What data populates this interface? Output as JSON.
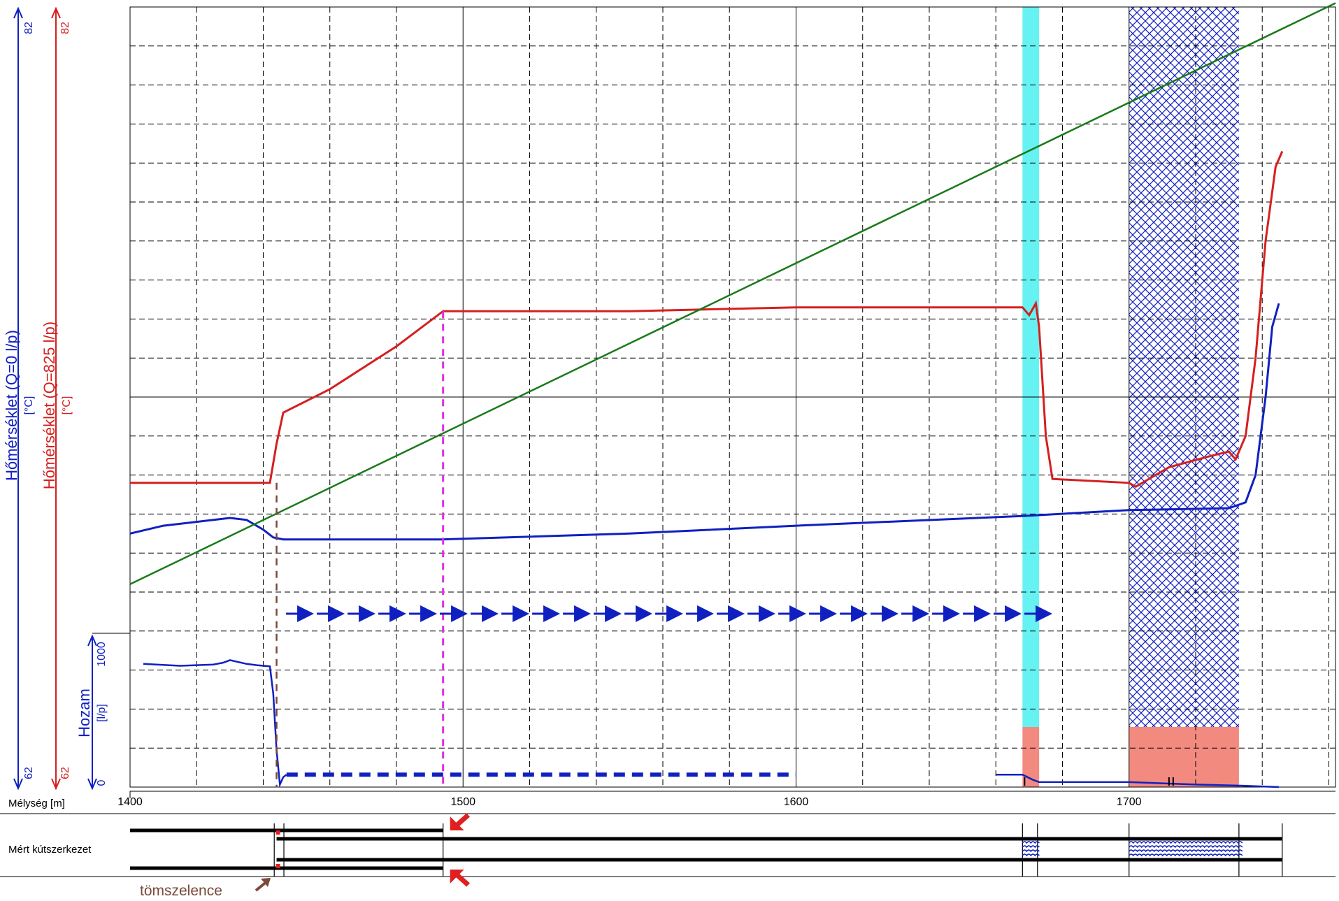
{
  "colors": {
    "blue": "#1020c0",
    "red": "#d42020",
    "green": "#1a7a1a",
    "cyan": "#66f2f2",
    "salmon": "#f28a80",
    "brown": "#7a4a3a",
    "magenta": "#e030e0",
    "grid": "#000000"
  },
  "labels": {
    "axis_temp0": "Hőmérséklet (Q=0 l/p)",
    "axis_temp0_unit": "[°C]",
    "axis_temp825": "Hőmérséklet (Q=825 l/p)",
    "axis_temp825_unit": "[°C]",
    "axis_flow": "Hozam",
    "axis_flow_unit": "[l/p]",
    "depth_label": "Mélység [m]",
    "structure_label": "Mért kútszerkezet",
    "packer_label": "tömszelence"
  },
  "chart_data": {
    "type": "line",
    "x_axis": {
      "label": "Mélység [m]",
      "range": [
        1400,
        1762
      ],
      "ticks": [
        1400,
        1500,
        1600,
        1700
      ]
    },
    "temp_axis_q0": {
      "label": "Hőmérséklet (Q=0 l/p)",
      "unit": "[°C]",
      "range": [
        62,
        82
      ],
      "ticks": [
        62,
        82
      ]
    },
    "temp_axis_q825": {
      "label": "Hőmérséklet (Q=825 l/p)",
      "unit": "[°C]",
      "range": [
        62,
        82
      ],
      "ticks": [
        62,
        82
      ]
    },
    "flow_axis": {
      "label": "Hozam",
      "unit": "[l/p]",
      "range": [
        0,
        1000
      ],
      "ticks": [
        0,
        1000
      ]
    },
    "grid": true,
    "series": [
      {
        "key": "temp_q825",
        "color": "red",
        "axis": "temp",
        "points": [
          [
            1400,
            69.8
          ],
          [
            1435,
            69.8
          ],
          [
            1442,
            69.8
          ],
          [
            1444,
            70.8
          ],
          [
            1446,
            71.6
          ],
          [
            1460,
            72.2
          ],
          [
            1480,
            73.3
          ],
          [
            1494,
            74.2
          ],
          [
            1550,
            74.2
          ],
          [
            1600,
            74.3
          ],
          [
            1668,
            74.3
          ],
          [
            1670,
            74.1
          ],
          [
            1672,
            74.4
          ],
          [
            1673,
            73.8
          ],
          [
            1675,
            71.0
          ],
          [
            1677,
            69.9
          ],
          [
            1700,
            69.8
          ],
          [
            1702,
            69.7
          ],
          [
            1712,
            70.2
          ],
          [
            1725,
            70.5
          ],
          [
            1730,
            70.6
          ],
          [
            1732,
            70.4
          ],
          [
            1735,
            71.0
          ],
          [
            1738,
            73.0
          ],
          [
            1741,
            76.0
          ],
          [
            1744,
            77.9
          ],
          [
            1746,
            78.3
          ]
        ]
      },
      {
        "key": "temp_q0",
        "color": "blue",
        "axis": "temp",
        "points": [
          [
            1400,
            68.5
          ],
          [
            1410,
            68.7
          ],
          [
            1430,
            68.9
          ],
          [
            1435,
            68.85
          ],
          [
            1440,
            68.6
          ],
          [
            1443,
            68.4
          ],
          [
            1446,
            68.35
          ],
          [
            1494,
            68.35
          ],
          [
            1550,
            68.5
          ],
          [
            1600,
            68.7
          ],
          [
            1668,
            68.95
          ],
          [
            1700,
            69.1
          ],
          [
            1730,
            69.15
          ],
          [
            1735,
            69.3
          ],
          [
            1738,
            70.0
          ],
          [
            1741,
            72.0
          ],
          [
            1743,
            73.8
          ],
          [
            1745,
            74.4
          ]
        ]
      },
      {
        "key": "geotherm",
        "color": "green",
        "axis": "temp",
        "points": [
          [
            1400,
            67.2
          ],
          [
            1762,
            82.1
          ]
        ]
      },
      {
        "key": "flow",
        "color": "blue",
        "axis": "flow",
        "points": [
          [
            1404,
            990
          ],
          [
            1415,
            975
          ],
          [
            1425,
            985
          ],
          [
            1428,
            1000
          ],
          [
            1430,
            1020
          ],
          [
            1435,
            990
          ],
          [
            1438,
            980
          ],
          [
            1442,
            970
          ],
          [
            1443,
            750
          ],
          [
            1444,
            300
          ],
          [
            1445,
            20
          ],
          [
            1446,
            80
          ],
          [
            1447,
            100
          ],
          [
            1660,
            100
          ],
          [
            1668,
            100
          ],
          [
            1671,
            60
          ],
          [
            1673,
            40
          ],
          [
            1700,
            40
          ],
          [
            1720,
            20
          ],
          [
            1735,
            10
          ],
          [
            1745,
            0
          ]
        ]
      }
    ],
    "annotations": {
      "packer_depth": 1444,
      "shoe_depth": 1494,
      "cyan_band": [
        1668,
        1673
      ],
      "hatched_zone": [
        1700,
        1733
      ],
      "arrows_range": [
        1446,
        1666
      ]
    }
  }
}
